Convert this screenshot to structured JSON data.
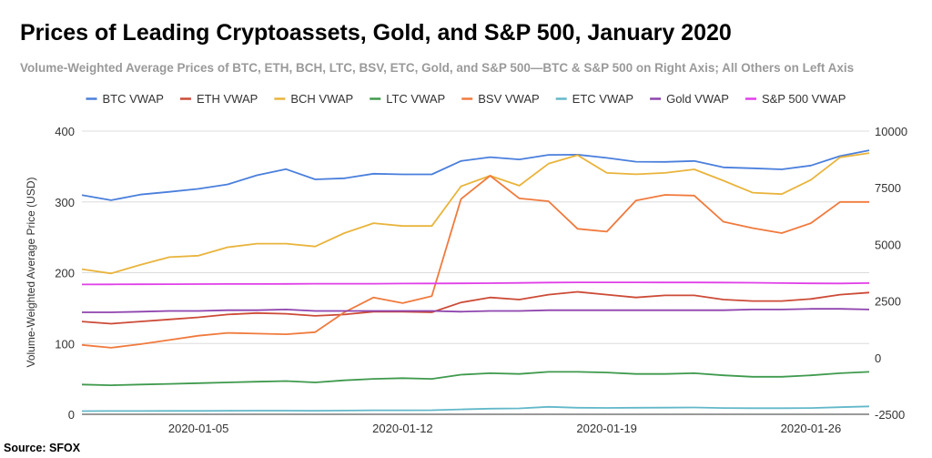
{
  "title": "Prices of Leading Cryptoassets, Gold, and S&P 500, January 2020",
  "subtitle": "Volume-Weighted Average Prices of BTC, ETH, BCH, LTC, BSV, ETC, Gold, and S&P 500—BTC & S&P 500 on Right Axis; All Others on Left Axis",
  "source": "Source: SFOX",
  "chart_data": {
    "type": "line",
    "ylabel": "Volume-Weighted Average Price (USD)",
    "ylim_left": [
      0,
      400
    ],
    "ylim_right": [
      -2500,
      10000
    ],
    "yticks_left": [
      "0",
      "100",
      "200",
      "300",
      "400"
    ],
    "yticks_right": [
      "-2500",
      "0",
      "2500",
      "5000",
      "7500",
      "10000"
    ],
    "xtick_labels": [
      "2020-01-05",
      "2020-01-12",
      "2020-01-19",
      "2020-01-26"
    ],
    "xtick_index": [
      4,
      11,
      18,
      25
    ],
    "legend_position": "top",
    "grid": true,
    "x": [
      "2020-01-01",
      "2020-01-02",
      "2020-01-03",
      "2020-01-04",
      "2020-01-05",
      "2020-01-06",
      "2020-01-07",
      "2020-01-08",
      "2020-01-09",
      "2020-01-10",
      "2020-01-11",
      "2020-01-12",
      "2020-01-13",
      "2020-01-14",
      "2020-01-15",
      "2020-01-16",
      "2020-01-17",
      "2020-01-18",
      "2020-01-19",
      "2020-01-20",
      "2020-01-21",
      "2020-01-22",
      "2020-01-23",
      "2020-01-24",
      "2020-01-25",
      "2020-01-26",
      "2020-01-27",
      "2020-01-28"
    ],
    "series": [
      {
        "name": "BTC VWAP",
        "axis": "right",
        "color": "#4a7fdc",
        "values": [
          7180,
          6950,
          7200,
          7320,
          7450,
          7650,
          8050,
          8320,
          7870,
          7920,
          8120,
          8090,
          8090,
          8680,
          8850,
          8750,
          8950,
          8960,
          8820,
          8650,
          8640,
          8680,
          8400,
          8360,
          8310,
          8480,
          8900,
          9150
        ]
      },
      {
        "name": "ETH VWAP",
        "axis": "left",
        "color": "#cc4b37",
        "values": [
          131,
          128,
          131,
          134,
          137,
          141,
          143,
          142,
          139,
          141,
          145,
          145,
          144,
          158,
          165,
          162,
          169,
          173,
          169,
          165,
          168,
          168,
          162,
          160,
          160,
          163,
          169,
          172
        ]
      },
      {
        "name": "BCH VWAP",
        "axis": "left",
        "color": "#e9b43c",
        "values": [
          205,
          199,
          211,
          222,
          224,
          236,
          241,
          241,
          237,
          256,
          270,
          266,
          266,
          322,
          337,
          323,
          354,
          366,
          341,
          339,
          341,
          346,
          330,
          313,
          311,
          331,
          363,
          369
        ]
      },
      {
        "name": "LTC VWAP",
        "axis": "left",
        "color": "#3f9a4d",
        "values": [
          42,
          41,
          42,
          43,
          44,
          45,
          46,
          47,
          45,
          48,
          50,
          51,
          50,
          56,
          58,
          57,
          60,
          60,
          59,
          57,
          57,
          58,
          55,
          53,
          53,
          55,
          58,
          60
        ]
      },
      {
        "name": "BSV VWAP",
        "axis": "left",
        "color": "#f07a3d",
        "values": [
          98,
          94,
          99,
          105,
          111,
          115,
          114,
          113,
          116,
          144,
          165,
          157,
          167,
          304,
          337,
          305,
          301,
          262,
          258,
          302,
          310,
          309,
          272,
          263,
          256,
          270,
          300,
          300
        ]
      },
      {
        "name": "ETC VWAP",
        "axis": "left",
        "color": "#62b8c9",
        "values": [
          4.5,
          4.6,
          4.6,
          4.7,
          4.8,
          5.0,
          5.1,
          5.2,
          5.0,
          5.3,
          5.6,
          5.7,
          5.8,
          7.0,
          8.0,
          8.3,
          10.5,
          9.3,
          9.0,
          9.2,
          9.4,
          9.6,
          8.9,
          8.6,
          8.6,
          8.9,
          10.0,
          11.2
        ]
      },
      {
        "name": "Gold VWAP",
        "axis": "left",
        "color": "#8e44ad",
        "values": [
          144,
          144,
          145,
          146,
          146,
          147,
          147,
          148,
          146,
          146,
          146,
          146,
          146,
          145,
          146,
          146,
          147,
          147,
          147,
          147,
          147,
          147,
          147,
          148,
          148,
          149,
          149,
          148
        ]
      },
      {
        "name": "S&P 500 VWAP",
        "axis": "right",
        "color": "#e040e8",
        "values": [
          3230,
          3234,
          3238,
          3243,
          3248,
          3250,
          3252,
          3256,
          3262,
          3262,
          3265,
          3270,
          3275,
          3280,
          3289,
          3300,
          3315,
          3325,
          3325,
          3322,
          3320,
          3320,
          3315,
          3308,
          3292,
          3280,
          3275,
          3290
        ]
      }
    ]
  }
}
